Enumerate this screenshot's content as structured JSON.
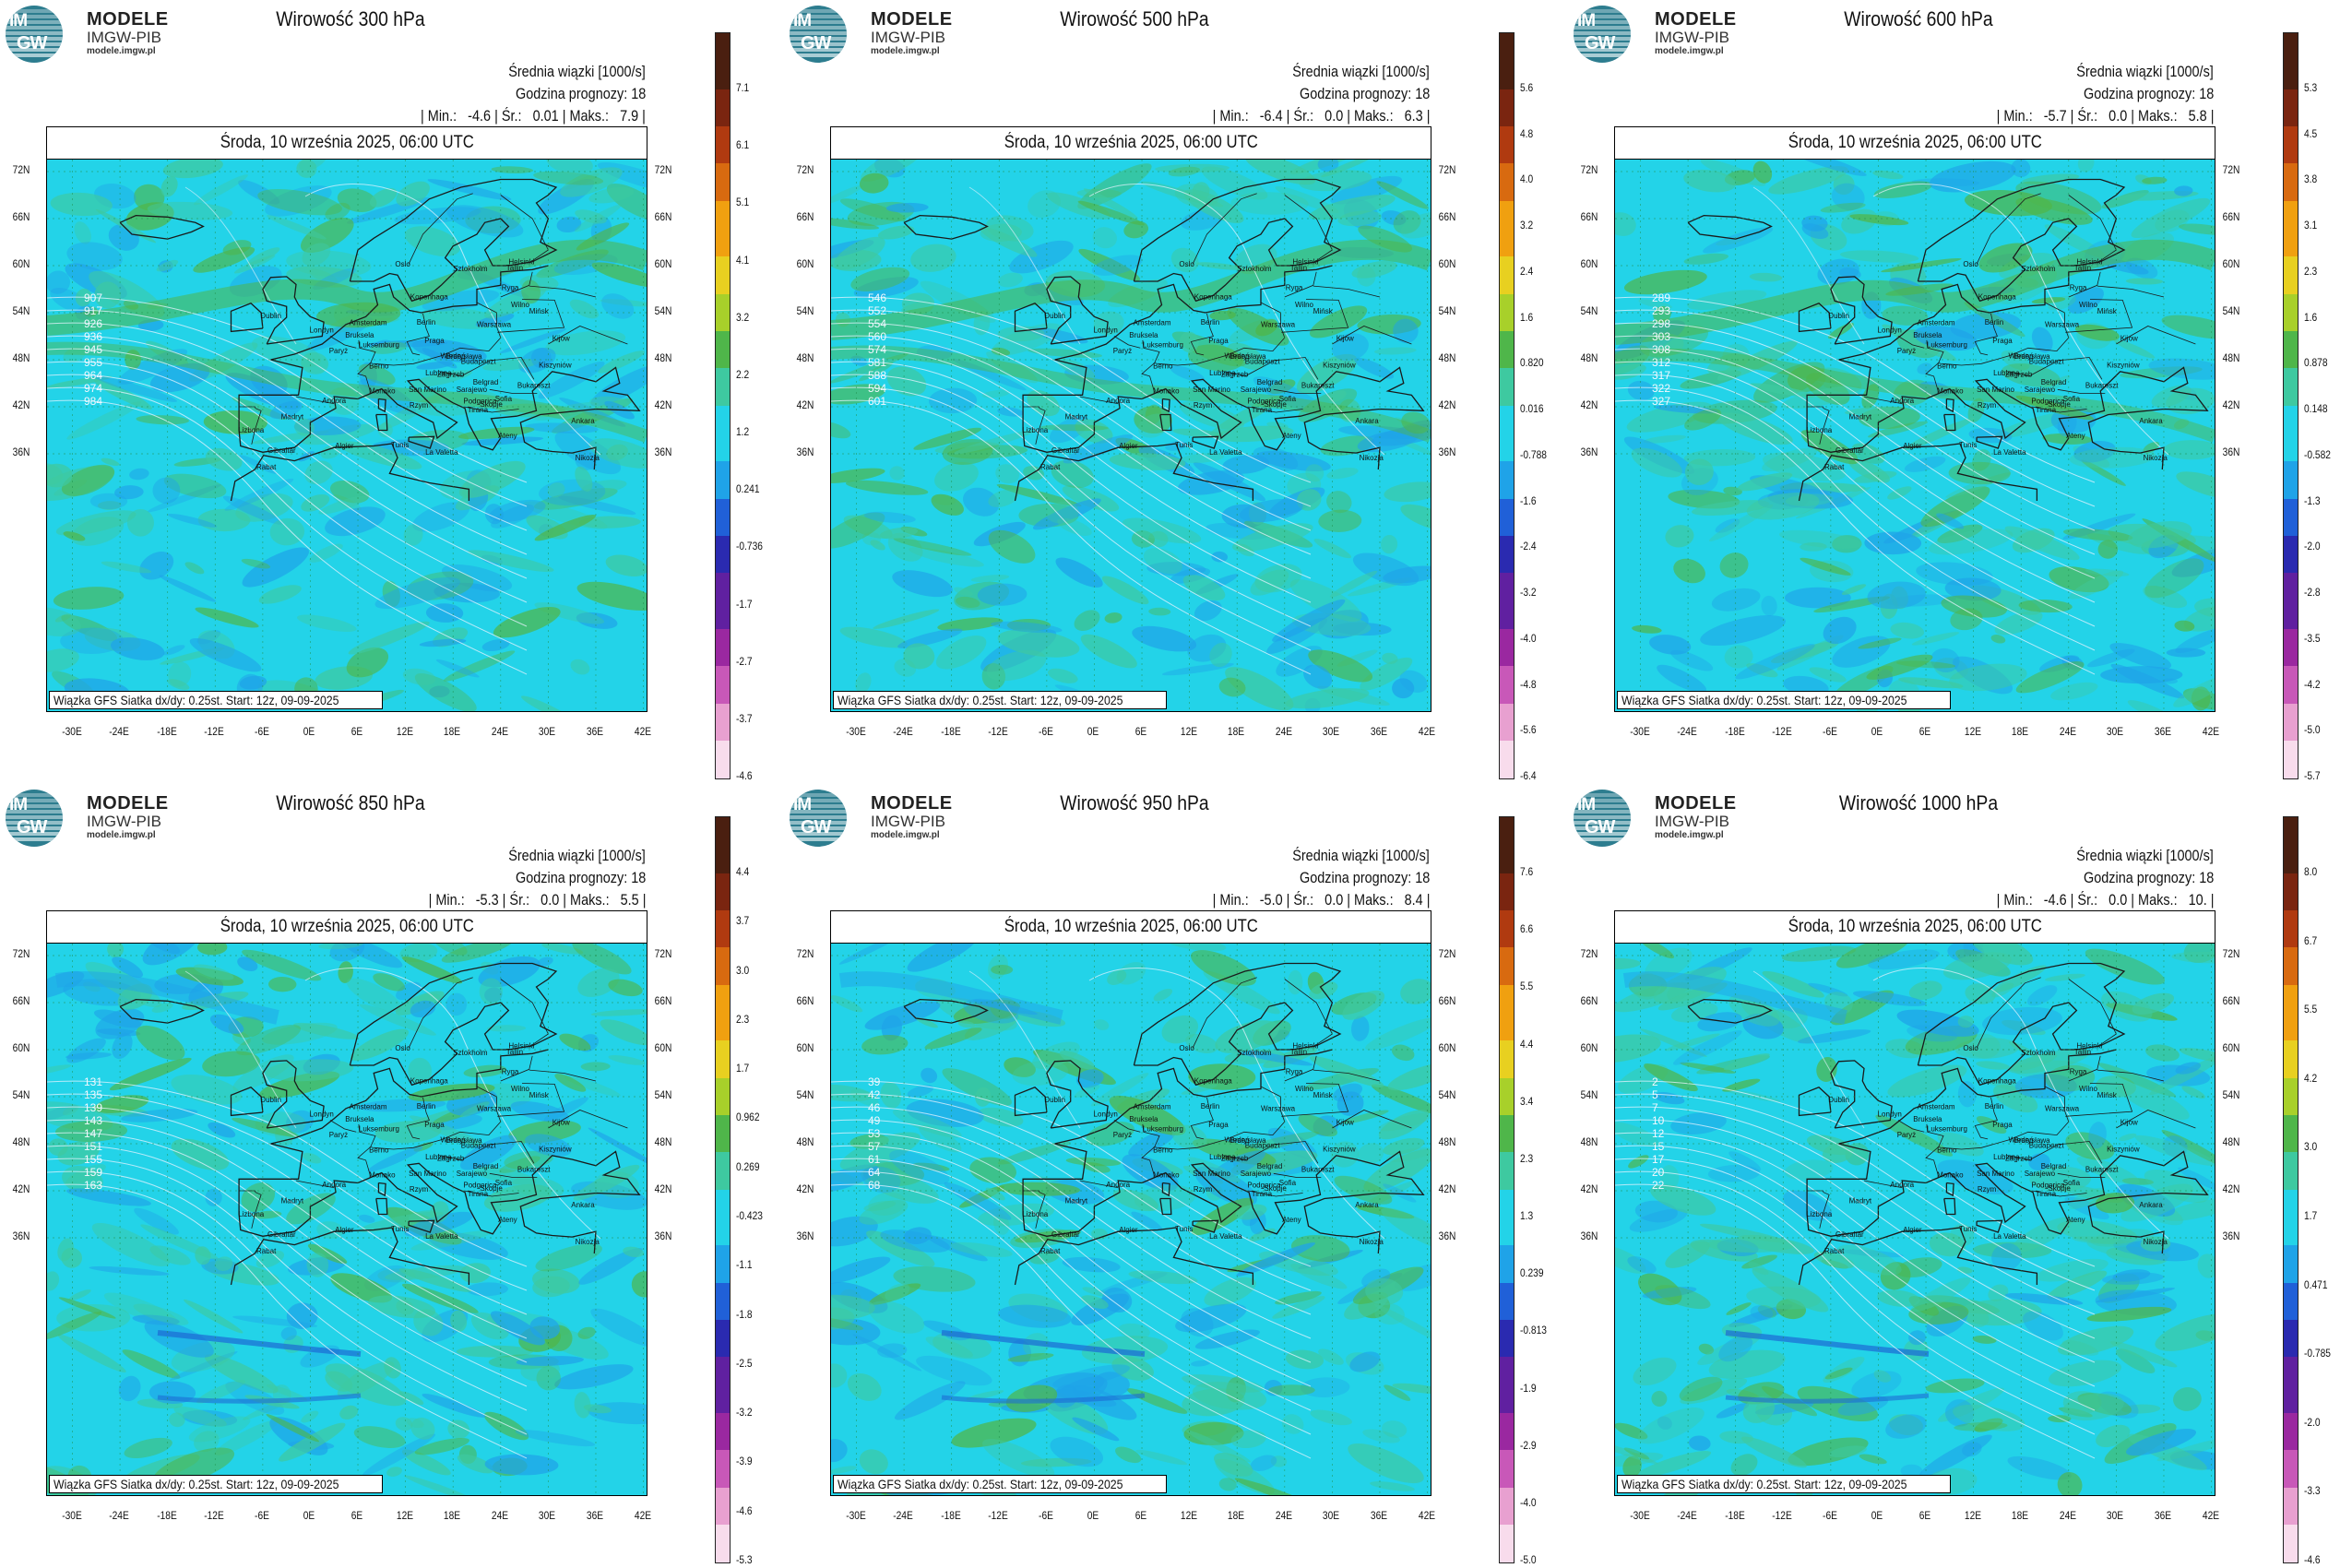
{
  "logo": {
    "line1": "MODELE",
    "line2": "IMGW-PIB",
    "line3": "modele.imgw.pl",
    "im": "IM",
    "gw": "GW"
  },
  "common": {
    "mean_label": "Średnia wiązki [1000/s]",
    "forecast_hour": "Godzina prognozy: 18",
    "date": "Środa, 10 września 2025, 06:00 UTC",
    "credit": "Wiązka GFS Siatka dx/dy: 0.25st. Start: 12z, 09-09-2025",
    "lat_labels_left": [
      "72N",
      "66N",
      "60N",
      "54N",
      "48N",
      "42N",
      "36N"
    ],
    "lat_labels_right": [
      "72N",
      "66N",
      "60N",
      "54N",
      "48N",
      "42N",
      "36N"
    ],
    "lon_labels": [
      "-30E",
      "-24E",
      "-18E",
      "-12E",
      "-6E",
      "0E",
      "6E",
      "12E",
      "18E",
      "24E",
      "30E",
      "36E",
      "42E"
    ],
    "cities": [
      "Oslo",
      "Sztokholm",
      "Helsinki",
      "Tallin",
      "Ryga",
      "Wilno",
      "Mińsk",
      "Kopenhaga",
      "Berlin",
      "Warszawa",
      "Amsterdam",
      "Bruksela",
      "Londyn",
      "Dublin",
      "Luksemburg",
      "Paryż",
      "Praga",
      "Wiedeń",
      "Bratysława",
      "Kijów",
      "Kiszyniów",
      "Budapeszt",
      "Berno",
      "Zagrzeb",
      "Lublana",
      "Belgrad",
      "Bukareszt",
      "Sarajewo",
      "San Marino",
      "Podgorica",
      "Sofia",
      "Skopje",
      "Tirana",
      "Rzym",
      "Ateny",
      "Andora",
      "Madryt",
      "Lizbona",
      "Monako",
      "Ankara",
      "Gibraltar",
      "Algier",
      "Tunis",
      "La Valetta",
      "Rabat",
      "Nikozja"
    ]
  },
  "colors": {
    "sea": "#23d3e8",
    "land_green": "#3ec9a0",
    "positive_strong": "#4fb64a",
    "negative": "#1fa3e8",
    "coast": "#1a1a1a",
    "isoline": "#e8f3ff"
  },
  "panels": [
    {
      "title": "Wirowość 300 hPa",
      "min": "-4.6",
      "avg": "0.01",
      "max": "7.9",
      "cbar": [
        "7.1",
        "6.1",
        "5.1",
        "4.1",
        "3.2",
        "2.2",
        "1.2",
        "0.241",
        "-0.736",
        "-1.7",
        "-2.7",
        "-3.7",
        "-4.6"
      ],
      "isolines": [
        "907",
        "917",
        "926",
        "936",
        "945",
        "955",
        "964",
        "974",
        "984"
      ]
    },
    {
      "title": "Wirowość 500 hPa",
      "min": "-6.4",
      "avg": "0.0",
      "max": "6.3",
      "cbar": [
        "5.6",
        "4.8",
        "4.0",
        "3.2",
        "2.4",
        "1.6",
        "0.820",
        "0.016",
        "-0.788",
        "-1.6",
        "-2.4",
        "-3.2",
        "-4.0",
        "-4.8",
        "-5.6",
        "-6.4"
      ],
      "isolines": [
        "546",
        "552",
        "554",
        "560",
        "574",
        "581",
        "588",
        "594",
        "601"
      ]
    },
    {
      "title": "Wirowość 600 hPa",
      "min": "-5.7",
      "avg": "0.0",
      "max": "5.8",
      "cbar": [
        "5.3",
        "4.5",
        "3.8",
        "3.1",
        "2.3",
        "1.6",
        "0.878",
        "0.148",
        "-0.582",
        "-1.3",
        "-2.0",
        "-2.8",
        "-3.5",
        "-4.2",
        "-5.0",
        "-5.7"
      ],
      "isolines": [
        "289",
        "293",
        "298",
        "303",
        "308",
        "312",
        "317",
        "322",
        "327"
      ]
    },
    {
      "title": "Wirowość 850 hPa",
      "min": "-5.3",
      "avg": "0.0",
      "max": "5.5",
      "cbar": [
        "4.4",
        "3.7",
        "3.0",
        "2.3",
        "1.7",
        "0.962",
        "0.269",
        "-0.423",
        "-1.1",
        "-1.8",
        "-2.5",
        "-3.2",
        "-3.9",
        "-4.6",
        "-5.3"
      ],
      "isolines": [
        "131",
        "135",
        "139",
        "143",
        "147",
        "151",
        "155",
        "159",
        "163"
      ]
    },
    {
      "title": "Wirowość 950 hPa",
      "min": "-5.0",
      "avg": "0.0",
      "max": "8.4",
      "cbar": [
        "7.6",
        "6.6",
        "5.5",
        "4.4",
        "3.4",
        "2.3",
        "1.3",
        "0.239",
        "-0.813",
        "-1.9",
        "-2.9",
        "-4.0",
        "-5.0"
      ],
      "isolines": [
        "39",
        "42",
        "46",
        "49",
        "53",
        "57",
        "61",
        "64",
        "68"
      ]
    },
    {
      "title": "Wirowość 1000 hPa",
      "min": "-4.6",
      "avg": "0.0",
      "max": "10.",
      "cbar": [
        "8.0",
        "6.7",
        "5.5",
        "4.2",
        "3.0",
        "1.7",
        "0.471",
        "-0.785",
        "-2.0",
        "-3.3",
        "-4.6"
      ],
      "isolines": [
        "2",
        "5",
        "7",
        "10",
        "12",
        "15",
        "17",
        "20",
        "22"
      ]
    }
  ]
}
